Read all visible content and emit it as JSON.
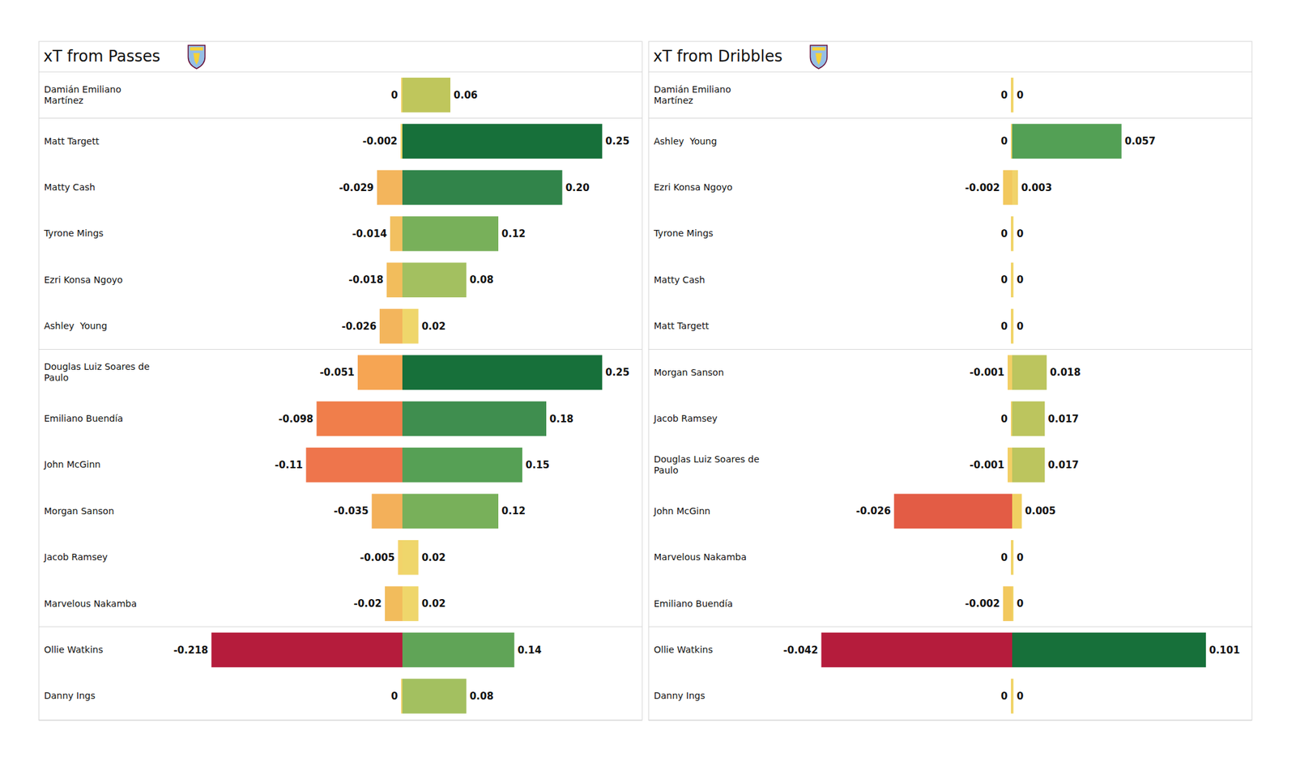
{
  "chart_data": [
    {
      "type": "bar",
      "title": "xT from Passes",
      "orientation": "horizontal",
      "data_labels": true,
      "tick_labels": "y",
      "categories": [
        "Damián Emiliano Martínez",
        "Matt Targett",
        "Matty Cash",
        "Tyrone Mings",
        "Ezri Konsa Ngoyo",
        "Ashley  Young",
        "Douglas Luiz Soares de Paulo",
        "Emiliano Buendía",
        "John McGinn",
        "Morgan Sanson",
        "Jacob Ramsey",
        "Marvelous Nakamba",
        "Ollie Watkins",
        "Danny Ings"
      ],
      "ylim": [
        0,
        0.3
      ],
      "y2lim": [
        -0.415,
        0
      ],
      "series": [
        {
          "axis": "y2",
          "values": [
            0,
            -0.002,
            -0.029,
            -0.014,
            -0.018,
            -0.026,
            -0.051,
            -0.098,
            -0.11,
            -0.035,
            -0.005,
            -0.02,
            -0.218,
            0
          ],
          "value_labels": [
            "0",
            "-0.002",
            "-0.029",
            "-0.014",
            "-0.018",
            "-0.026",
            "-0.051",
            "-0.098",
            "-0.11",
            "-0.035",
            "-0.005",
            "-0.02",
            "-0.218",
            "0"
          ],
          "colors": [
            "#f2d36a",
            "#f0d56a",
            "#f3b55c",
            "#f2c060",
            "#f2bd5c",
            "#f3b55c",
            "#f6a553",
            "#f07e4b",
            "#ee754c",
            "#f3b05a",
            "#f2d36a",
            "#f2bc5c",
            "#b51c3c",
            "#f2d36a"
          ]
        },
        {
          "values": [
            0.06,
            0.25,
            0.2,
            0.12,
            0.08,
            0.02,
            0.25,
            0.18,
            0.15,
            0.12,
            0.02,
            0.02,
            0.14,
            0.08
          ],
          "value_labels": [
            "0.06",
            "0.25",
            "0.20",
            "0.12",
            "0.08",
            "0.02",
            "0.25",
            "0.18",
            "0.15",
            "0.12",
            "0.02",
            "0.02",
            "0.14",
            "0.08"
          ],
          "colors": [
            "#bfc65c",
            "#17703a",
            "#31844a",
            "#78b05a",
            "#a3c060",
            "#efd66b",
            "#17703a",
            "#3f8e4f",
            "#56a055",
            "#78b05a",
            "#efd66b",
            "#efd66b",
            "#60a457",
            "#a3c060"
          ]
        }
      ]
    },
    {
      "type": "bar",
      "title": "xT from Dribbles",
      "orientation": "horizontal",
      "data_labels": true,
      "tick_labels": "y",
      "categories": [
        "Damián Emiliano Martínez",
        "Ashley  Young",
        "Ezri Konsa Ngoyo",
        "Tyrone Mings",
        "Matty Cash",
        "Matt Targett",
        "Morgan Sanson",
        "Jacob Ramsey",
        "Douglas Luiz Soares de Paulo",
        "John McGinn",
        "Marvelous Nakamba",
        "Emiliano Buendía",
        "Ollie Watkins",
        "Danny Ings"
      ],
      "ylim": [
        0,
        0.125
      ],
      "y2lim": [
        -0.08,
        0
      ],
      "series": [
        {
          "axis": "y2",
          "values": [
            0,
            0,
            -0.002,
            0,
            0,
            0,
            -0.001,
            0,
            -0.001,
            -0.026,
            0,
            -0.002,
            -0.042,
            0
          ],
          "value_labels": [
            "0",
            "0",
            "-0.002",
            "0",
            "0",
            "0",
            "-0.001",
            "0",
            "-0.001",
            "-0.026",
            "0",
            "-0.002",
            "-0.042",
            "0"
          ],
          "colors": [
            "#f2d36a",
            "#f2d36a",
            "#f2c85e",
            "#f2d36a",
            "#f2d36a",
            "#f2d36a",
            "#f2cf66",
            "#f2d36a",
            "#f2cf66",
            "#e35c45",
            "#f2d36a",
            "#f2c85e",
            "#b51c3c",
            "#f2d36a"
          ]
        },
        {
          "values": [
            0,
            0.057,
            0.003,
            0,
            0,
            0,
            0.018,
            0.017,
            0.017,
            0.005,
            0,
            0,
            0.101,
            0
          ],
          "value_labels": [
            "0",
            "0.057",
            "0.003",
            "0",
            "0",
            "0",
            "0.018",
            "0.017",
            "0.017",
            "0.005",
            "0",
            "0",
            "0.101",
            "0"
          ],
          "colors": [
            "#efd66b",
            "#53a055",
            "#f1d36a",
            "#efd66b",
            "#efd66b",
            "#efd66b",
            "#bcc55e",
            "#bcc55e",
            "#bcc55e",
            "#f0d062",
            "#efd66b",
            "#efd66b",
            "#17703a",
            "#efd66b"
          ]
        }
      ]
    }
  ]
}
